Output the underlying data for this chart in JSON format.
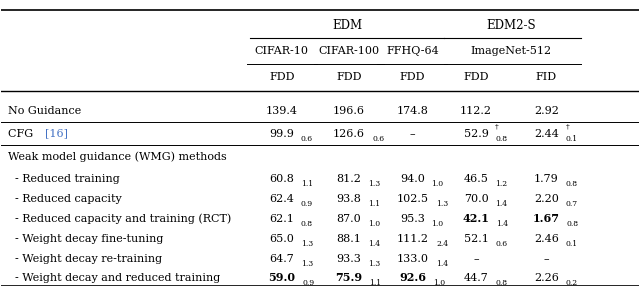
{
  "header_group1": "EDM",
  "header_group2": "EDM2-S",
  "col_headers_level2": [
    "CIFAR-10",
    "CIFAR-100",
    "FFHQ-64",
    "ImageNet-512"
  ],
  "col_headers_level3": [
    "FDD",
    "FDD",
    "FDD",
    "FDD",
    "FID"
  ],
  "rows": [
    {
      "label": "No Guidance",
      "label_parts": [
        {
          "text": "No Guidance",
          "color": "black"
        }
      ],
      "values": [
        "139.4",
        "196.6",
        "174.8",
        "112.2",
        "2.92"
      ],
      "subs": [
        "",
        "",
        "",
        "",
        ""
      ],
      "sups": [
        "",
        "",
        "",
        "",
        ""
      ],
      "bold_values": [
        false,
        false,
        false,
        false,
        false
      ],
      "separator_before": false,
      "header_row": false
    },
    {
      "label": "CFG [16]",
      "label_parts": [
        {
          "text": "CFG ",
          "color": "black"
        },
        {
          "text": "[16]",
          "color": "#4472c4"
        }
      ],
      "values": [
        "99.9",
        "126.6",
        "–",
        "52.9",
        "2.44"
      ],
      "subs": [
        "0.6",
        "0.6",
        "",
        "0.8",
        "0.1"
      ],
      "sups": [
        "",
        "",
        "",
        "†",
        "†"
      ],
      "bold_values": [
        false,
        false,
        false,
        false,
        false
      ],
      "separator_before": true,
      "header_row": false
    },
    {
      "label": "Weak model guidance (WMG) methods",
      "label_parts": [
        {
          "text": "Weak model guidance (WMG) methods",
          "color": "black"
        }
      ],
      "values": [
        "",
        "",
        "",
        "",
        ""
      ],
      "subs": [
        "",
        "",
        "",
        "",
        ""
      ],
      "sups": [
        "",
        "",
        "",
        "",
        ""
      ],
      "bold_values": [
        false,
        false,
        false,
        false,
        false
      ],
      "separator_before": true,
      "header_row": true
    },
    {
      "label": "  - Reduced training",
      "label_parts": [
        {
          "text": "  - Reduced training",
          "color": "black"
        }
      ],
      "values": [
        "60.8",
        "81.2",
        "94.0",
        "46.5",
        "1.79"
      ],
      "subs": [
        "1.1",
        "1.3",
        "1.0",
        "1.2",
        "0.8"
      ],
      "sups": [
        "",
        "",
        "",
        "",
        ""
      ],
      "bold_values": [
        false,
        false,
        false,
        false,
        false
      ],
      "separator_before": false,
      "header_row": false
    },
    {
      "label": "  - Reduced capacity",
      "label_parts": [
        {
          "text": "  - Reduced capacity",
          "color": "black"
        }
      ],
      "values": [
        "62.4",
        "93.8",
        "102.5",
        "70.0",
        "2.20"
      ],
      "subs": [
        "0.9",
        "1.1",
        "1.3",
        "1.4",
        "0.7"
      ],
      "sups": [
        "",
        "",
        "",
        "",
        ""
      ],
      "bold_values": [
        false,
        false,
        false,
        false,
        false
      ],
      "separator_before": false,
      "header_row": false
    },
    {
      "label": "  - Reduced capacity and training (RCT)",
      "label_parts": [
        {
          "text": "  - Reduced capacity and training (RCT)",
          "color": "black"
        }
      ],
      "values": [
        "62.1",
        "87.0",
        "95.3",
        "42.1",
        "1.67"
      ],
      "subs": [
        "0.8",
        "1.0",
        "1.0",
        "1.4",
        "0.8"
      ],
      "sups": [
        "",
        "",
        "",
        "",
        ""
      ],
      "bold_values": [
        false,
        false,
        false,
        true,
        true
      ],
      "separator_before": false,
      "header_row": false
    },
    {
      "label": "  - Weight decay fine-tuning",
      "label_parts": [
        {
          "text": "  - Weight decay fine-tuning",
          "color": "black"
        }
      ],
      "values": [
        "65.0",
        "88.1",
        "111.2",
        "52.1",
        "2.46"
      ],
      "subs": [
        "1.3",
        "1.4",
        "2.4",
        "0.6",
        "0.1"
      ],
      "sups": [
        "",
        "",
        "",
        "",
        ""
      ],
      "bold_values": [
        false,
        false,
        false,
        false,
        false
      ],
      "separator_before": false,
      "header_row": false
    },
    {
      "label": "  - Weight decay re-training",
      "label_parts": [
        {
          "text": "  - Weight decay re-training",
          "color": "black"
        }
      ],
      "values": [
        "64.7",
        "93.3",
        "133.0",
        "–",
        "–"
      ],
      "subs": [
        "1.3",
        "1.3",
        "1.4",
        "",
        ""
      ],
      "sups": [
        "",
        "",
        "",
        "",
        ""
      ],
      "bold_values": [
        false,
        false,
        false,
        false,
        false
      ],
      "separator_before": false,
      "header_row": false
    },
    {
      "label": "  - Weight decay and reduced training",
      "label_parts": [
        {
          "text": "  - Weight decay and reduced training",
          "color": "black"
        }
      ],
      "values": [
        "59.0",
        "75.9",
        "92.6",
        "44.7",
        "2.26"
      ],
      "subs": [
        "0.9",
        "1.1",
        "1.0",
        "0.8",
        "0.2"
      ],
      "sups": [
        "",
        "",
        "",
        "",
        ""
      ],
      "bold_values": [
        true,
        true,
        true,
        false,
        false
      ],
      "separator_before": false,
      "header_row": false
    }
  ],
  "background_color": "#ffffff",
  "text_color": "#000000",
  "link_color": "#4472c4",
  "font_size": 8.0,
  "sub_font_size": 5.5,
  "header_font_size": 8.5,
  "fig_width": 6.4,
  "fig_height": 2.89,
  "dpi": 100
}
